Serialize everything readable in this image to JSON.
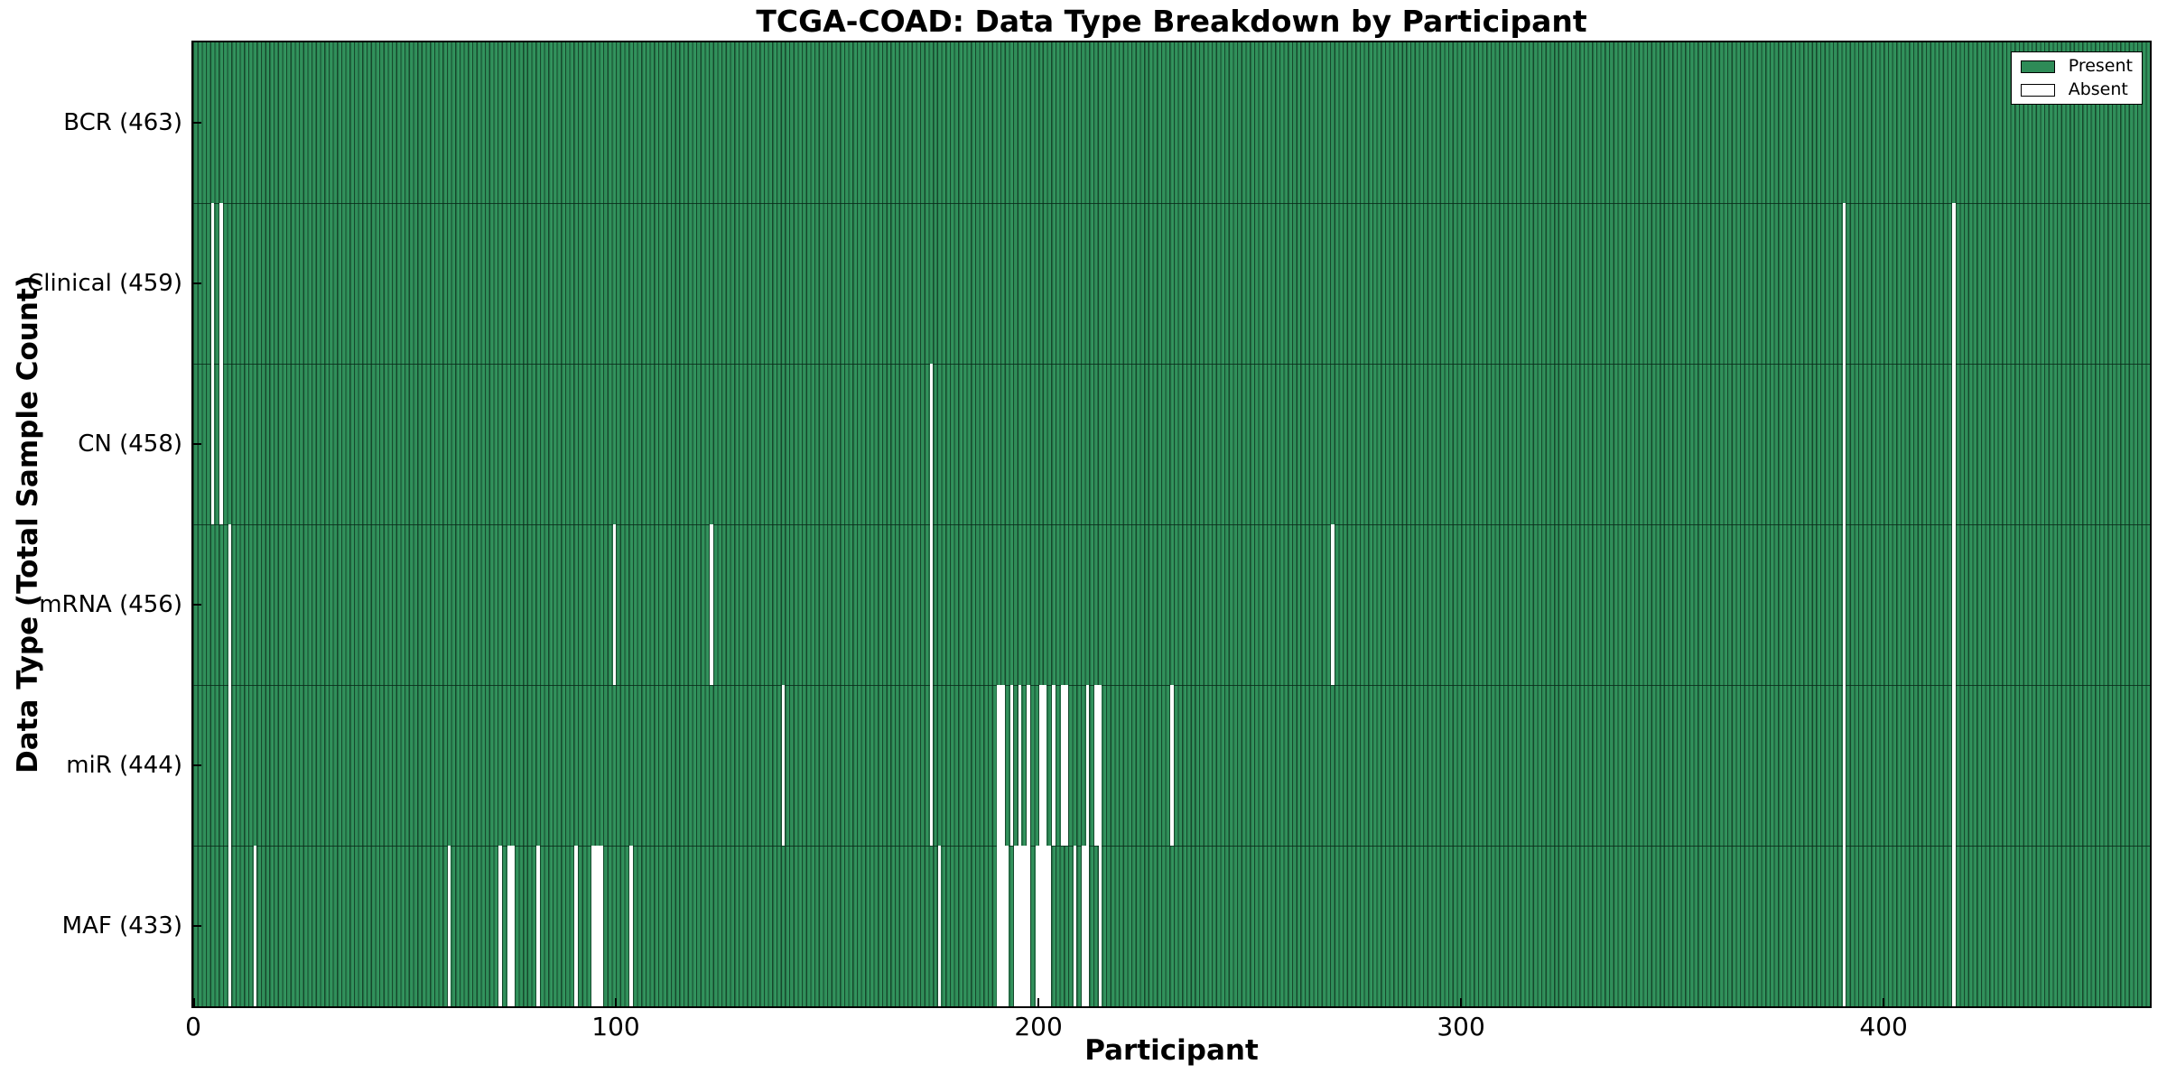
{
  "chart_data": {
    "type": "heatmap",
    "title": "TCGA-COAD: Data Type Breakdown by Participant",
    "xlabel": "Participant",
    "ylabel": "Data Type (Total Sample Count)",
    "xlim": [
      0,
      463
    ],
    "xticks": [
      0,
      100,
      200,
      300,
      400
    ],
    "grid": false,
    "legend_position": "upper right",
    "legend": [
      {
        "label": "Present",
        "color": "#2e8b57"
      },
      {
        "label": "Absent",
        "color": "#ffffff"
      }
    ],
    "colors": {
      "present_fill": "#2e8b57",
      "present_fill_alt": "#33945e",
      "bar_edge": "#16482c",
      "absent_fill": "#ffffff",
      "axis": "#000000"
    },
    "total_participants": 463,
    "rows": [
      {
        "label": "BCR (463)",
        "name": "BCR",
        "present_count": 463,
        "absent_count": 0,
        "absent_segments": []
      },
      {
        "label": "Clinical (459)",
        "name": "Clinical",
        "present_count": 459,
        "absent_count": 4,
        "absent_segments": [
          [
            4,
            1
          ],
          [
            6,
            1
          ],
          [
            390,
            1
          ],
          [
            416,
            1
          ]
        ]
      },
      {
        "label": "CN (458)",
        "name": "CN",
        "present_count": 458,
        "absent_count": 5,
        "absent_segments": [
          [
            4,
            1
          ],
          [
            6,
            1
          ],
          [
            174,
            1
          ],
          [
            390,
            1
          ],
          [
            416,
            1
          ]
        ]
      },
      {
        "label": "mRNA (456)",
        "name": "mRNA",
        "present_count": 456,
        "absent_count": 7,
        "absent_segments": [
          [
            8,
            1
          ],
          [
            99,
            1
          ],
          [
            122,
            1
          ],
          [
            174,
            1
          ],
          [
            269,
            1
          ],
          [
            390,
            1
          ],
          [
            416,
            1
          ]
        ]
      },
      {
        "label": "miR (444)",
        "name": "miR",
        "present_count": 444,
        "absent_count": 19,
        "absent_segments": [
          [
            8,
            1
          ],
          [
            139,
            1
          ],
          [
            174,
            1
          ],
          [
            190,
            2
          ],
          [
            193,
            1
          ],
          [
            195,
            1
          ],
          [
            197,
            1
          ],
          [
            200,
            2
          ],
          [
            203,
            1
          ],
          [
            205,
            2
          ],
          [
            211,
            1
          ],
          [
            213,
            2
          ],
          [
            231,
            1
          ],
          [
            390,
            1
          ],
          [
            416,
            1
          ]
        ]
      },
      {
        "label": "MAF (433)",
        "name": "MAF",
        "present_count": 433,
        "absent_count": 30,
        "absent_segments": [
          [
            8,
            1
          ],
          [
            14,
            1
          ],
          [
            60,
            1
          ],
          [
            72,
            1
          ],
          [
            74,
            2
          ],
          [
            81,
            1
          ],
          [
            90,
            1
          ],
          [
            94,
            3
          ],
          [
            103,
            1
          ],
          [
            176,
            1
          ],
          [
            190,
            3
          ],
          [
            194,
            4
          ],
          [
            199,
            4
          ],
          [
            208,
            1
          ],
          [
            210,
            2
          ],
          [
            214,
            1
          ],
          [
            390,
            1
          ],
          [
            416,
            1
          ]
        ]
      }
    ]
  }
}
